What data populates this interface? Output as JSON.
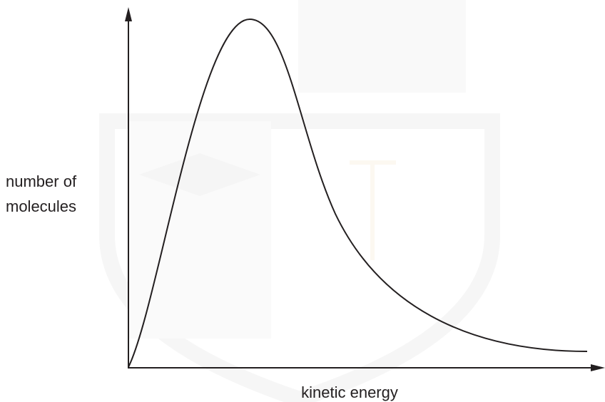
{
  "axes": {
    "y_label": [
      "number of",
      "molecules"
    ],
    "x_label": "kinetic energy"
  }
}
